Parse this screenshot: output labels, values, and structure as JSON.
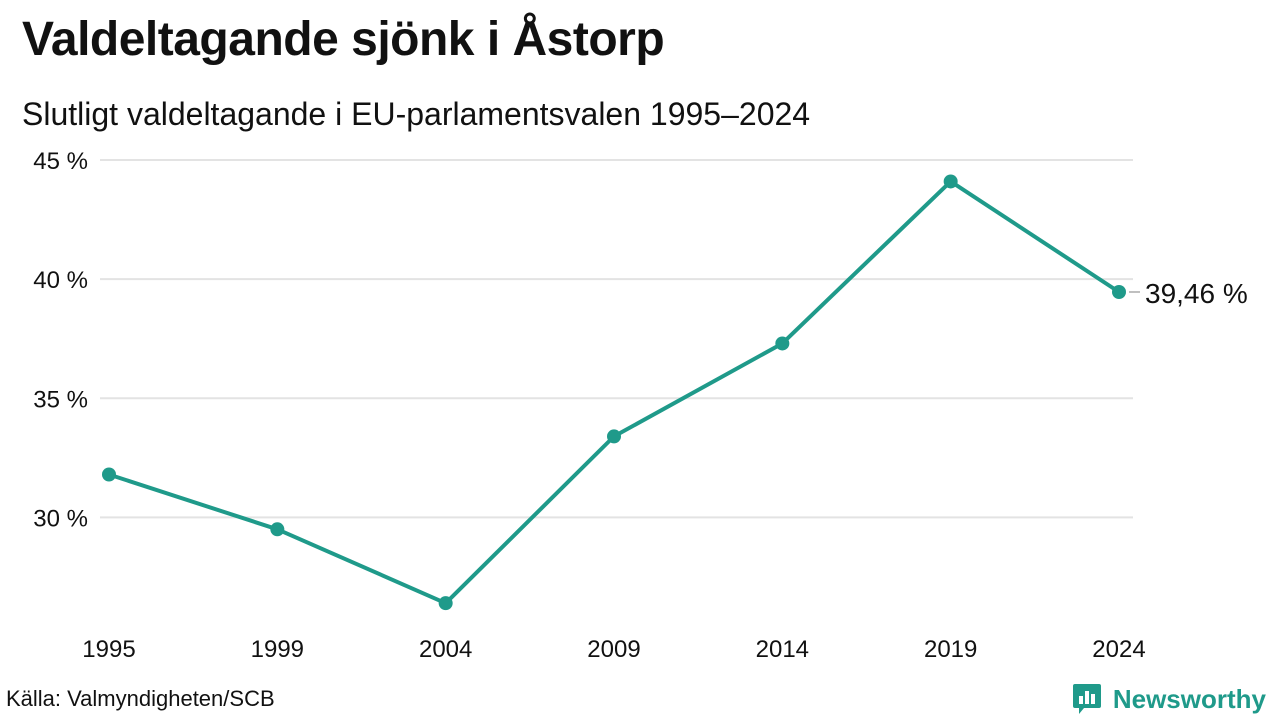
{
  "title": "Valdeltagande sjönk i Åstorp",
  "subtitle": "Slutligt valdeltagande i EU-parlamentsvalen 1995–2024",
  "source": "Källa: Valmyndigheten/SCB",
  "brand": {
    "name": "Newsworthy",
    "logo_icon": "bar-chart-badge-icon"
  },
  "colors": {
    "line": "#1f9a8a",
    "grid": "#e3e3e3",
    "text": "#111111",
    "brand": "#1f9a8a"
  },
  "chart_data": {
    "type": "line",
    "title": "Valdeltagande sjönk i Åstorp",
    "subtitle": "Slutligt valdeltagande i EU-parlamentsvalen 1995–2024",
    "xlabel": "",
    "ylabel": "",
    "categories": [
      "1995",
      "1999",
      "2004",
      "2009",
      "2014",
      "2019",
      "2024"
    ],
    "values": [
      31.8,
      29.5,
      26.4,
      33.4,
      37.3,
      44.1,
      39.46
    ],
    "ylim": [
      25.4,
      45
    ],
    "yticks": [
      30,
      35,
      40,
      45
    ],
    "ytick_labels": [
      "30 %",
      "35 %",
      "40 %",
      "45 %"
    ],
    "grid": true,
    "legend": "none",
    "annotation": {
      "category": "2024",
      "label": "39,46 %"
    }
  }
}
